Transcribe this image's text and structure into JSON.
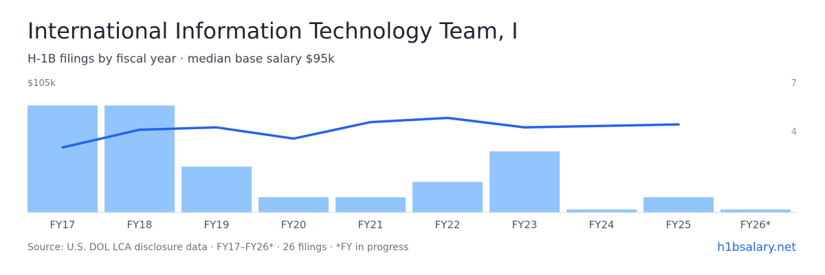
{
  "header": {
    "title": "International Information Technology Team, I",
    "subtitle": "H-1B filings by fiscal year · median base salary $95k"
  },
  "footer": {
    "source": "Source: U.S. DOL LCA disclosure data · FY17–FY26* · 26 filings · *FY in progress",
    "brand": "h1bsalary.net"
  },
  "chart_data": {
    "type": "bar",
    "categories": [
      "FY17",
      "FY18",
      "FY19",
      "FY20",
      "FY21",
      "FY22",
      "FY23",
      "FY24",
      "FY25",
      "FY26*"
    ],
    "series": [
      {
        "type": "bar",
        "axis": "right",
        "values": [
          7,
          7,
          3,
          1,
          1,
          2,
          4,
          0.2,
          1,
          0.2
        ],
        "color": "#93c5fd"
      },
      {
        "type": "line",
        "axis": "left",
        "values": [
          94,
          97,
          97.4,
          95.5,
          98.3,
          99,
          97.4,
          null,
          97.9,
          null
        ],
        "color": "#2563eb"
      }
    ],
    "left_axis": {
      "tick_label": "$105k",
      "max": 105,
      "min": 83
    },
    "right_axis": {
      "tick_labels": [
        "7",
        "4"
      ],
      "max": 8.5,
      "min": 0
    },
    "grid": false
  }
}
